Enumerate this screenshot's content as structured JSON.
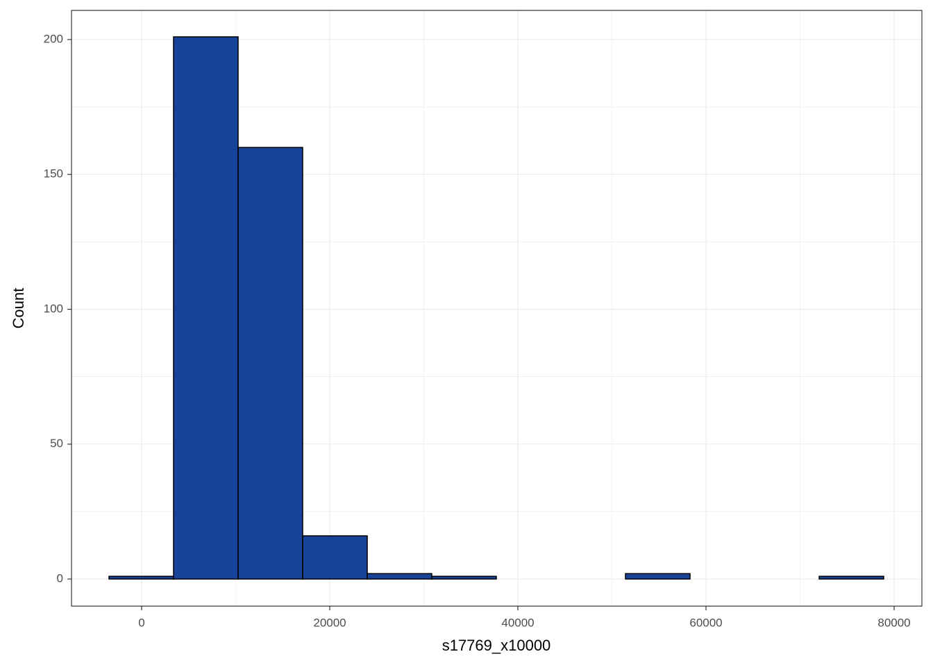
{
  "chart_data": {
    "type": "histogram",
    "x_label": "s17769_x10000",
    "y_label": "Count",
    "bins": [
      -3469,
      3395,
      10258,
      17121,
      23985,
      30848,
      37712,
      44575,
      51439,
      58302,
      65166,
      72029,
      78893
    ],
    "values": [
      1,
      201,
      160,
      16,
      2,
      1,
      0,
      0,
      2,
      0,
      0,
      1
    ],
    "color": "#17439a",
    "edge_color": "#000000",
    "xlim": [
      -7454,
      82951
    ],
    "xticks": [
      0,
      20000,
      40000,
      60000,
      80000
    ],
    "ylim": [
      -10.05,
      210.8
    ],
    "yticks": [
      0,
      50,
      100,
      150,
      200
    ],
    "grid": true
  }
}
